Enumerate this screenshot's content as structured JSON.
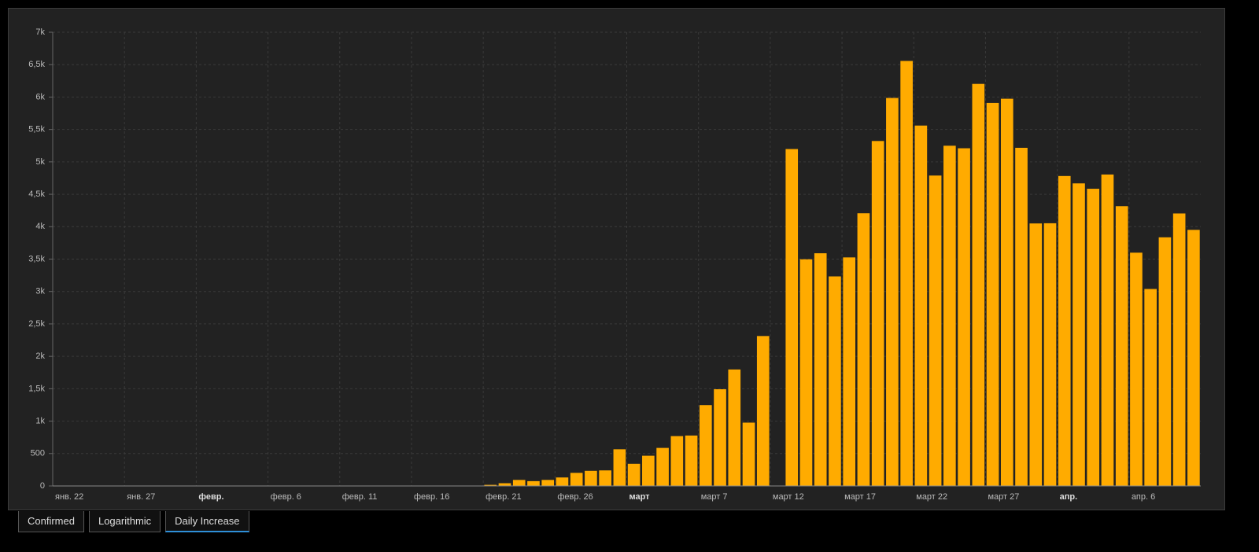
{
  "chart_data": {
    "type": "bar",
    "categories": [
      "янв. 22",
      null,
      null,
      null,
      null,
      "янв. 27",
      null,
      null,
      null,
      null,
      "февр.",
      null,
      null,
      null,
      null,
      "февр. 6",
      null,
      null,
      null,
      null,
      "февр. 11",
      null,
      null,
      null,
      null,
      "февр. 16",
      null,
      null,
      null,
      null,
      "февр. 21",
      null,
      null,
      null,
      null,
      "февр. 26",
      null,
      null,
      null,
      null,
      "март",
      null,
      null,
      null,
      null,
      "март 7",
      null,
      null,
      null,
      null,
      "март 12",
      null,
      null,
      null,
      null,
      "март 17",
      null,
      null,
      null,
      null,
      "март 22",
      null,
      null,
      null,
      null,
      "март 27",
      null,
      null,
      null,
      null,
      "апр.",
      null,
      null,
      null,
      null,
      "апр. 6",
      null,
      null,
      null,
      null
    ],
    "values": [
      0,
      0,
      0,
      0,
      0,
      0,
      0,
      0,
      0,
      2,
      0,
      0,
      0,
      0,
      0,
      0,
      1,
      0,
      0,
      0,
      0,
      0,
      0,
      0,
      0,
      0,
      0,
      0,
      0,
      0,
      17,
      42,
      93,
      74,
      93,
      131,
      202,
      233,
      240,
      566,
      342,
      466,
      587,
      769,
      778,
      1247,
      1492,
      1797,
      977,
      2313,
      0,
      5198,
      3497,
      3590,
      3233,
      3526,
      4207,
      5322,
      5986,
      6557,
      5560,
      4789,
      5249,
      5210,
      6203,
      5909,
      5974,
      5217,
      4050,
      4053,
      4782,
      4668,
      4585,
      4805,
      4316,
      3599,
      3039,
      3836,
      4204,
      3951
    ],
    "color": "#ffab00",
    "ylim": [
      0,
      7000
    ],
    "yticks": [
      0,
      500,
      {
        "value": 1000,
        "label": "1k"
      },
      {
        "value": 1500,
        "label": "1,5k"
      },
      {
        "value": 2000,
        "label": "2k"
      },
      {
        "value": 2500,
        "label": "2,5k"
      },
      {
        "value": 3000,
        "label": "3k"
      },
      {
        "value": 3500,
        "label": "3,5k"
      },
      {
        "value": 4000,
        "label": "4k"
      },
      {
        "value": 4500,
        "label": "4,5k"
      },
      {
        "value": 5000,
        "label": "5k"
      },
      {
        "value": 5500,
        "label": "5,5k"
      },
      {
        "value": 6000,
        "label": "6k"
      },
      {
        "value": 6500,
        "label": "6,5k"
      },
      {
        "value": 7000,
        "label": "7k"
      }
    ],
    "grid": true
  },
  "tabs": [
    "Confirmed",
    "Logarithmic",
    "Daily Increase"
  ]
}
